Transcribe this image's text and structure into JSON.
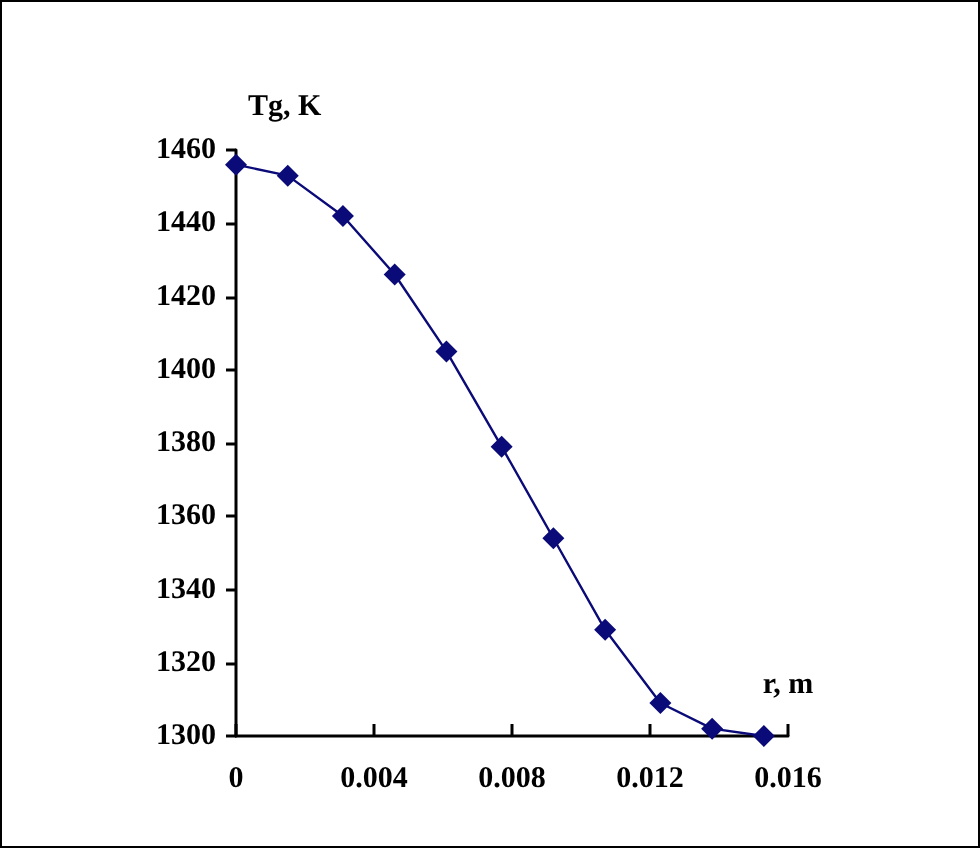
{
  "chart_data": {
    "type": "line",
    "xlabel": "r, m",
    "ylabel": "Tg, K",
    "x": [
      0,
      0.0015,
      0.0031,
      0.0046,
      0.0061,
      0.0077,
      0.0092,
      0.0107,
      0.0123,
      0.0138,
      0.0153
    ],
    "series": [
      {
        "color": "#0a0a78",
        "values": [
          1456,
          1453,
          1442,
          1426,
          1405,
          1379,
          1354,
          1329,
          1309,
          1302,
          1300
        ]
      }
    ],
    "xlim": [
      0,
      0.016
    ],
    "xticks": [
      0,
      0.004,
      0.008,
      0.012,
      0.016
    ],
    "ylim": [
      1300,
      1460
    ],
    "yticks": [
      1300,
      1320,
      1340,
      1360,
      1380,
      1400,
      1420,
      1440,
      1460
    ],
    "grid": false,
    "marker": "diamond",
    "line_style": "solid"
  }
}
